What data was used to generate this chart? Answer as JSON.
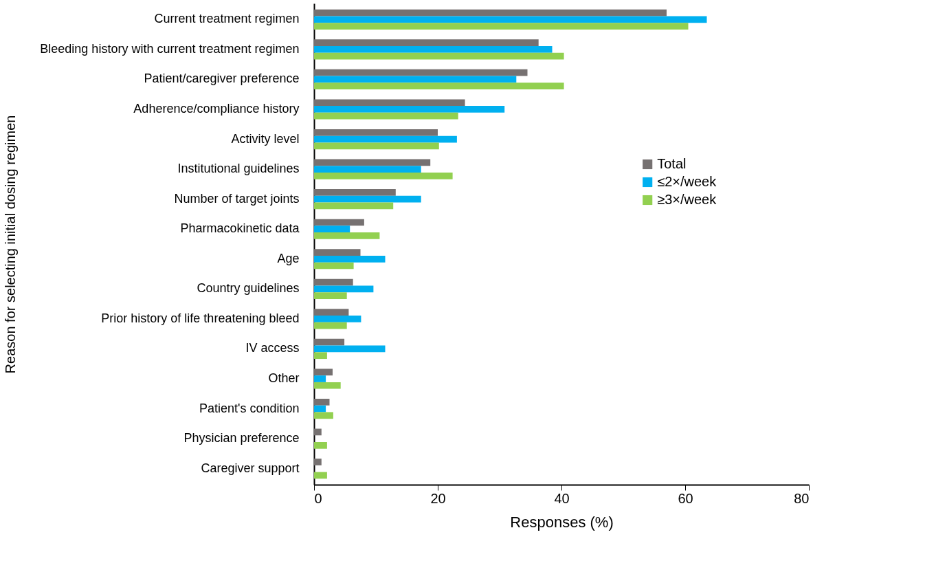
{
  "chart_data": {
    "type": "bar",
    "orientation": "horizontal",
    "xlabel": "Responses (%)",
    "ylabel": "Reason for selecting initial dosing regimen",
    "categories": [
      "Current treatment regimen",
      "Bleeding history with current treatment regimen",
      "Patient/caregiver preference",
      "Adherence/compliance history",
      "Activity level",
      "Institutional guidelines",
      "Number of target joints",
      "Pharmacokinetic data",
      "Age",
      "Country guidelines",
      "Prior history of life threatening bleed",
      "IV access",
      "Other",
      "Patient's condition",
      "Physician preference",
      "Caregiver support"
    ],
    "series": [
      {
        "name": "Total",
        "color": "#767171",
        "values": [
          57.0,
          36.3,
          34.5,
          24.4,
          20.0,
          18.8,
          13.2,
          8.1,
          7.5,
          6.3,
          5.6,
          4.9,
          3.0,
          2.5,
          1.2,
          1.2
        ]
      },
      {
        "name": "≤2×/week",
        "color": "#00b0f0",
        "values": [
          63.5,
          38.5,
          32.7,
          30.8,
          23.1,
          17.3,
          17.3,
          5.8,
          11.5,
          9.6,
          7.6,
          11.5,
          1.9,
          1.9,
          0,
          0
        ]
      },
      {
        "name": "≥3×/week",
        "color": "#92d050",
        "values": [
          60.5,
          40.4,
          40.4,
          23.3,
          20.2,
          22.4,
          12.8,
          10.6,
          6.4,
          5.3,
          5.3,
          2.1,
          4.3,
          3.1,
          2.1,
          2.1
        ]
      }
    ],
    "xlim": [
      0,
      80
    ],
    "xticks": [
      0,
      20,
      40,
      60,
      80
    ],
    "grid": false,
    "legend": "right"
  }
}
